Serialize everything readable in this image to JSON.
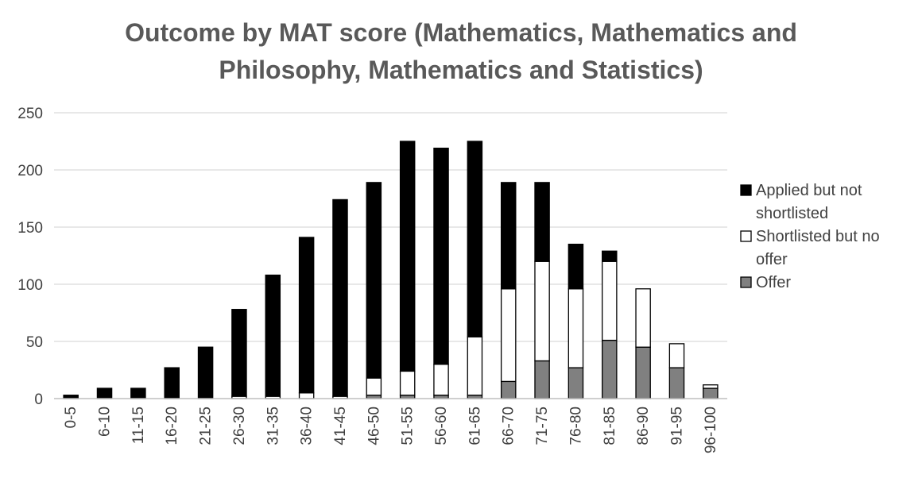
{
  "chart_data": {
    "type": "bar",
    "stacked": true,
    "title_lines": [
      "Outcome by MAT score (Mathematics, Mathematics and",
      "Philosophy, Mathematics and Statistics)"
    ],
    "categories": [
      "0-5",
      "6-10",
      "11-15",
      "16-20",
      "21-25",
      "26-30",
      "31-35",
      "36-40",
      "41-45",
      "46-50",
      "51-55",
      "56-60",
      "61-65",
      "66-70",
      "71-75",
      "76-80",
      "81-85",
      "86-90",
      "91-95",
      "96-100"
    ],
    "series": [
      {
        "name": "Offer",
        "color": "#808080",
        "values": [
          0,
          0,
          0,
          0,
          0,
          0,
          0,
          0,
          0,
          3,
          3,
          3,
          3,
          15,
          33,
          27,
          51,
          45,
          27,
          9
        ]
      },
      {
        "name": "Shortlisted but no offer",
        "color": "#ffffff",
        "values": [
          0,
          0,
          0,
          0,
          0,
          2,
          2,
          5,
          2,
          15,
          21,
          27,
          51,
          81,
          87,
          69,
          69,
          51,
          21,
          3
        ]
      },
      {
        "name": "Applied but not shortlisted",
        "color": "#000000",
        "values": [
          3,
          9,
          9,
          27,
          45,
          76,
          106,
          136,
          172,
          171,
          201,
          189,
          171,
          93,
          69,
          39,
          9,
          0,
          0,
          0
        ]
      }
    ],
    "legend": {
      "placement": "right",
      "entries": [
        {
          "series": 2,
          "lines": [
            "Applied but not",
            "shortlisted"
          ]
        },
        {
          "series": 1,
          "lines": [
            "Shortlisted but no",
            "offer"
          ]
        },
        {
          "series": 0,
          "lines": [
            "Offer"
          ]
        }
      ]
    },
    "ylim": [
      0,
      250
    ],
    "yticks": [
      0,
      50,
      100,
      150,
      200,
      250
    ],
    "grid": true,
    "colors": {
      "grid": "#d9d9d9",
      "axis": "#bfbfbf",
      "bar_stroke": "#000000"
    }
  }
}
